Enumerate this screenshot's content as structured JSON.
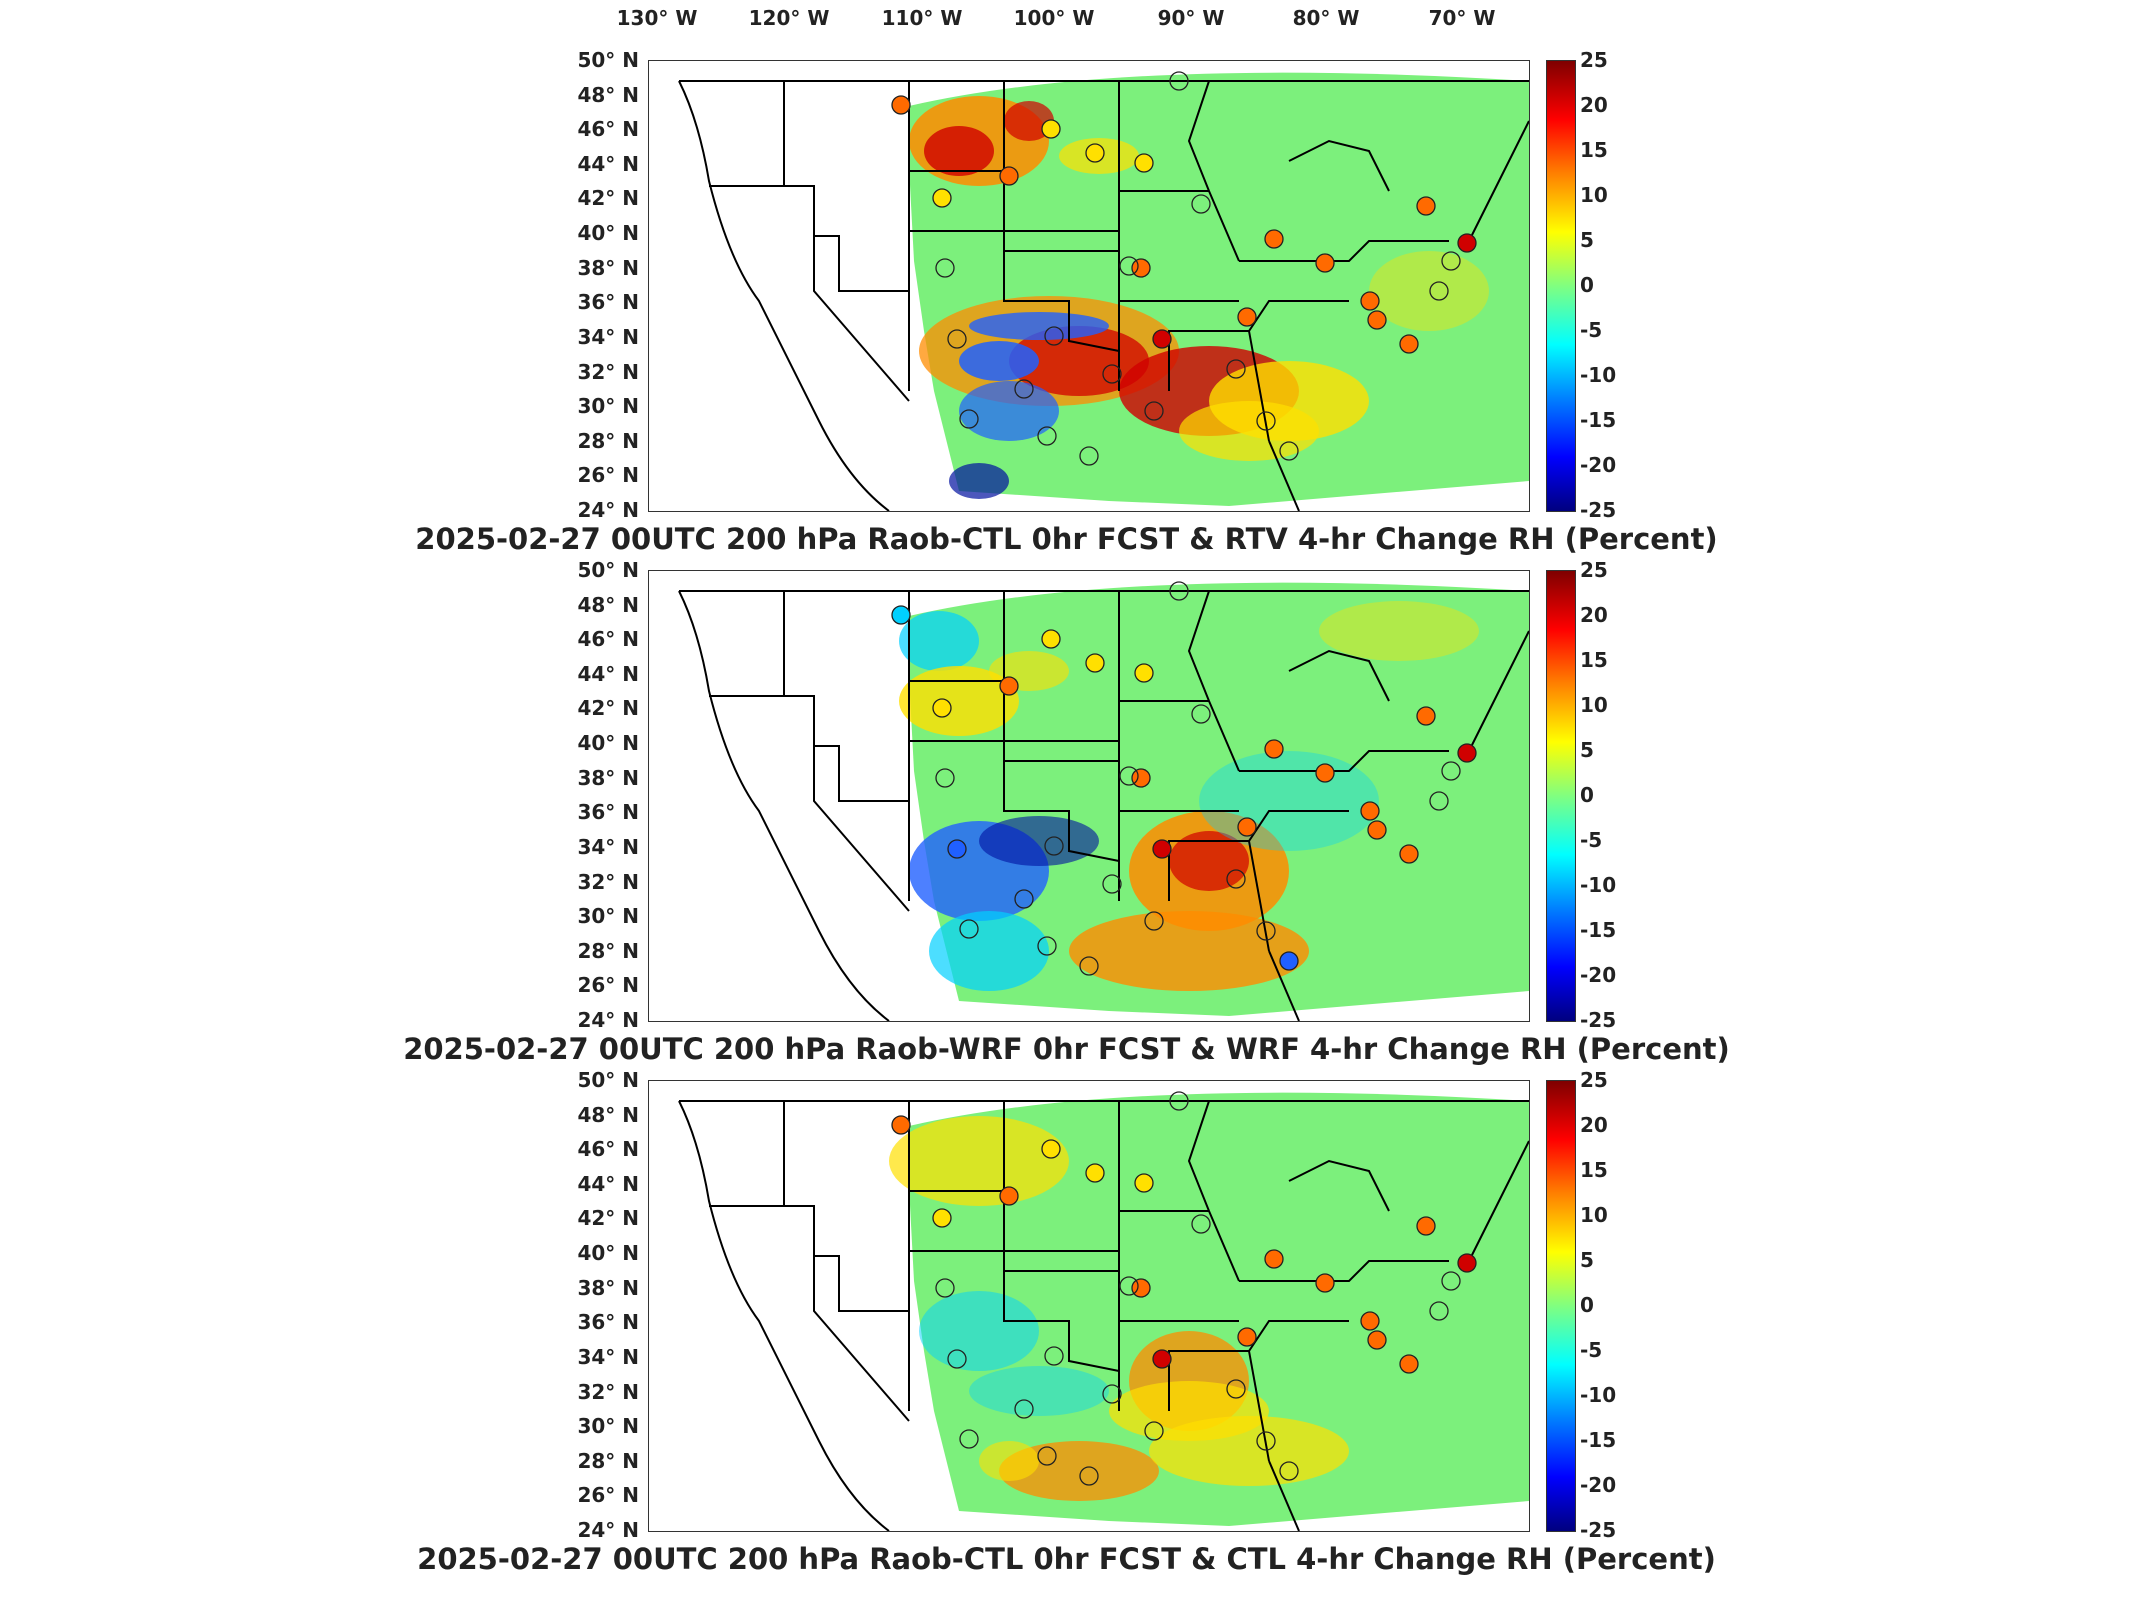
{
  "lon_labels": [
    "130° W",
    "120° W",
    "110° W",
    "100° W",
    "90° W",
    "80° W",
    "70° W"
  ],
  "lat_labels": [
    "50° N",
    "48° N",
    "46° N",
    "44° N",
    "42° N",
    "40° N",
    "38° N",
    "36° N",
    "34° N",
    "32° N",
    "30° N",
    "28° N",
    "26° N",
    "24° N"
  ],
  "colorbar_ticks": [
    "25",
    "20",
    "15",
    "10",
    "5",
    "0",
    "-5",
    "-10",
    "-15",
    "-20",
    "-25"
  ],
  "colors": {
    "background_field": "#7cf07c",
    "positive_strong": "#d00000",
    "positive": "#ff8c00",
    "positive_weak": "#ffe000",
    "negative": "#2060ff",
    "negative_strong": "#0010a0",
    "border": "#000000"
  },
  "panels": [
    {
      "title": "2025-02-27 00UTC 200 hPa Raob-CTL 0hr FCST & RTV 4-hr Change RH (Percent)",
      "field": "RTV 4-hr Change RH",
      "color_range": [
        -25,
        25
      ],
      "units": "Percent"
    },
    {
      "title": "2025-02-27 00UTC 200 hPa Raob-WRF 0hr FCST & WRF 4-hr Change RH (Percent)",
      "field": "WRF 4-hr Change RH",
      "color_range": [
        -25,
        25
      ],
      "units": "Percent"
    },
    {
      "title": "2025-02-27 00UTC 200 hPa Raob-CTL 0hr FCST & CTL 4-hr Change RH (Percent)",
      "field": "CTL 4-hr Change RH",
      "color_range": [
        -25,
        25
      ],
      "units": "Percent"
    }
  ]
}
